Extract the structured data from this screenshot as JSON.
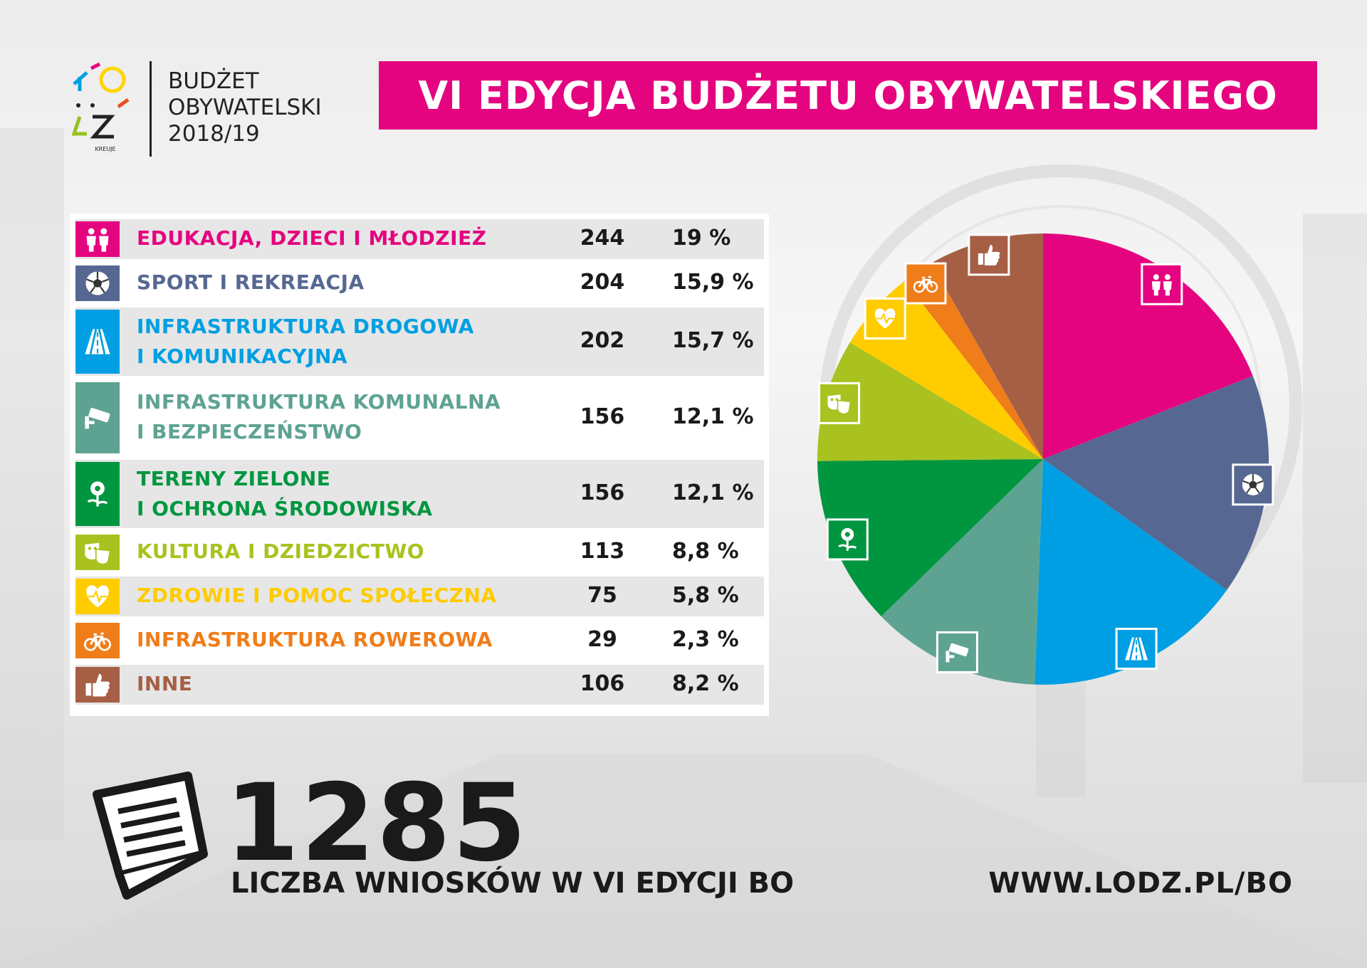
{
  "logo": {
    "line1": "BUDŻET",
    "line2": "OBYWATELSKI",
    "line3": "2018/19",
    "small_text": "KREUJE",
    "colors": [
      "#e5047f",
      "#009fe3",
      "#ffd500",
      "#95c11f",
      "#e94e1b"
    ]
  },
  "title": "VI EDYCJA BUDŻETU OBYWATELSKIEGO",
  "chart_data": {
    "type": "pie",
    "categories": [
      "EDUKACJA, DZIECI I MŁODZIEŻ",
      "SPORT I REKREACJA",
      "INFRASTRUKTURA DROGOWA\nI KOMUNIKACYJNA",
      "INFRASTRUKTURA KOMUNALNA\nI BEZPIECZEŃSTWO",
      "TERENY ZIELONE\nI OCHRONA ŚRODOWISKA",
      "KULTURA I DZIEDZICTWO",
      "ZDROWIE I POMOC SPOŁECZNA",
      "INFRASTRUKTURA ROWEROWA",
      "INNE"
    ],
    "values": [
      244,
      204,
      202,
      156,
      156,
      113,
      75,
      29,
      106
    ],
    "percent_labels": [
      "19 %",
      "15,9 %",
      "15,7 %",
      "12,1 %",
      "12,1 %",
      "8,8 %",
      "5,8 %",
      "2,3 %",
      "8,2 %"
    ],
    "colors": [
      "#e5047f",
      "#566892",
      "#009fe3",
      "#5ea392",
      "#009640",
      "#a9c21f",
      "#ffcc00",
      "#ef7d1a",
      "#a65f45"
    ],
    "icons": [
      "children-icon",
      "ball-icon",
      "road-icon",
      "camera-icon",
      "flower-icon",
      "theater-masks-icon",
      "heart-pulse-icon",
      "bicycle-icon",
      "thumbs-up-icon"
    ],
    "start_angle": "12 o'clock, clockwise"
  },
  "total": {
    "value": "1285",
    "label": "LICZBA WNIOSKÓW W VI EDYCJI BO"
  },
  "website": "WWW.LODZ.PL/BO",
  "doc_icon": "document-icon"
}
